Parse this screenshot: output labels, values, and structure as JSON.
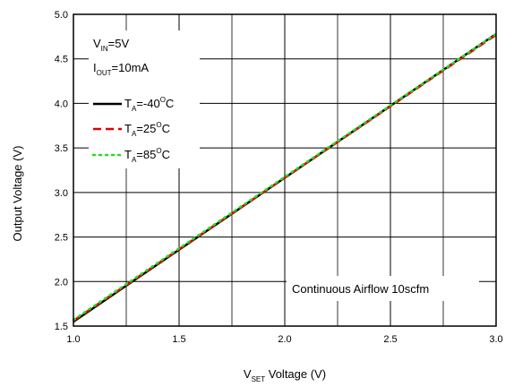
{
  "chart_data": {
    "type": "line",
    "xlabel": {
      "main": "V",
      "sub": "SET",
      "rest": " Voltage (V)"
    },
    "ylabel": "Output Voltage (V)",
    "xlim": [
      1.0,
      3.0
    ],
    "ylim": [
      1.5,
      5.0
    ],
    "x_ticks": [
      "1.0",
      "1.5",
      "2.0",
      "2.5",
      "3.0"
    ],
    "y_ticks": [
      "1.5",
      "2.0",
      "2.5",
      "3.0",
      "3.5",
      "4.0",
      "4.5",
      "5.0"
    ],
    "grid": true,
    "conditions": {
      "vin": {
        "main": "V",
        "sub": "IN",
        "rest": "=5V"
      },
      "iout": {
        "main": "I",
        "sub": "OUT",
        "rest": "=10mA"
      }
    },
    "legend_position": "top-left",
    "series": [
      {
        "name": {
          "main": "T",
          "sub": "A",
          "mid": "=-40",
          "sup": "O",
          "rest": "C"
        },
        "color": "#000000",
        "style": "solid",
        "x": [
          1.0,
          3.0
        ],
        "y": [
          1.55,
          4.78
        ]
      },
      {
        "name": {
          "main": "T",
          "sub": "A",
          "mid": "=25",
          "sup": "O",
          "rest": "C"
        },
        "color": "#e00000",
        "style": "dashed",
        "x": [
          1.0,
          3.0
        ],
        "y": [
          1.56,
          4.77
        ]
      },
      {
        "name": {
          "main": "T",
          "sub": "A",
          "mid": "=85",
          "sup": "O",
          "rest": "C"
        },
        "color": "#22dd22",
        "style": "dotted",
        "x": [
          1.0,
          3.0
        ],
        "y": [
          1.57,
          4.78
        ]
      }
    ],
    "annotation": "Continuous Airflow 10scfm"
  }
}
